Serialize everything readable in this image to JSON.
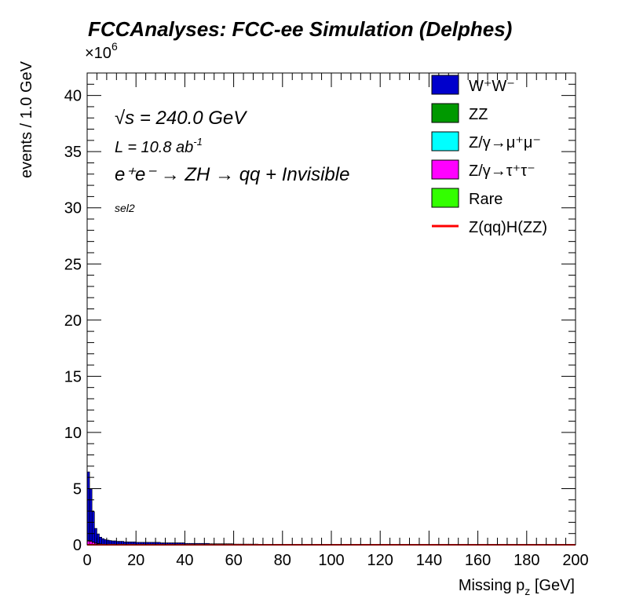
{
  "chart_data": {
    "type": "histogram-stacked",
    "title": "FCCAnalyses: FCC-ee Simulation (Delphes)",
    "xlabel": "Missing p",
    "xlabel_sub": "z",
    "xlabel_unit": " [GeV]",
    "ylabel": "events / 1.0 GeV",
    "y_multiplier": "×10",
    "y_multiplier_exp": "6",
    "xlim": [
      0,
      200
    ],
    "ylim": [
      0,
      42
    ],
    "x_ticks": [
      0,
      20,
      40,
      60,
      80,
      100,
      120,
      140,
      160,
      180,
      200
    ],
    "y_ticks": [
      0,
      5,
      10,
      15,
      20,
      25,
      30,
      35,
      40
    ],
    "annotations": {
      "sqrt_s_sym": "√s",
      "sqrt_s_val": " = 240.0 GeV",
      "lumi": "L = 10.8 ab",
      "lumi_exp": "-1",
      "process": "e⁺e⁻ → ZH → qq + Invisible",
      "selection": "sel2"
    },
    "legend_position": "top-right",
    "legend": [
      {
        "label": "W⁺W⁻",
        "color": "#0000cc",
        "type": "fill"
      },
      {
        "label": "ZZ",
        "color": "#009900",
        "type": "fill"
      },
      {
        "label": "Z/γ→μ⁺μ⁻",
        "color": "#00ffff",
        "type": "fill"
      },
      {
        "label": "Z/γ→τ⁺τ⁻",
        "color": "#ff00ff",
        "type": "fill"
      },
      {
        "label": "Rare",
        "color": "#33ff00",
        "type": "fill"
      },
      {
        "label": "Z(qq)H(ZZ)",
        "color": "#ff0000",
        "type": "line"
      }
    ],
    "bin_width": 1.0,
    "series": [
      {
        "name": "W⁺W⁻",
        "color": "#0000cc",
        "x": [
          0,
          1,
          2,
          3,
          4,
          5,
          6,
          7,
          8,
          9,
          10,
          12,
          15,
          20,
          30,
          40,
          50,
          60,
          70,
          80,
          90
        ],
        "values": [
          6.1,
          4.6,
          2.7,
          1.3,
          0.85,
          0.6,
          0.5,
          0.42,
          0.38,
          0.35,
          0.32,
          0.28,
          0.24,
          0.2,
          0.16,
          0.12,
          0.09,
          0.06,
          0.03,
          0.01,
          0.0
        ]
      },
      {
        "name": "ZZ",
        "color": "#009900",
        "x": [
          0,
          1,
          2,
          3,
          4,
          5,
          6,
          7,
          8,
          9,
          10,
          12,
          15,
          20,
          30,
          40,
          50,
          60,
          70,
          80,
          90
        ],
        "values": [
          0.05,
          0.04,
          0.03,
          0.02,
          0.02,
          0.02,
          0.01,
          0.01,
          0.01,
          0.01,
          0.01,
          0.01,
          0.01,
          0.01,
          0.005,
          0.005,
          0.003,
          0.002,
          0.001,
          0.0,
          0.0
        ]
      },
      {
        "name": "Z/γ→μ⁺μ⁻",
        "color": "#00ffff",
        "x": [
          0,
          1,
          2,
          3,
          4,
          5,
          6,
          7,
          8,
          9,
          10,
          12,
          15,
          20,
          30,
          40,
          50,
          60,
          70,
          80,
          90
        ],
        "values": [
          0.02,
          0.02,
          0.01,
          0.01,
          0.01,
          0.01,
          0.0,
          0.0,
          0.0,
          0.0,
          0.0,
          0.0,
          0.0,
          0.0,
          0.0,
          0.0,
          0.0,
          0.0,
          0.0,
          0.0,
          0.0
        ]
      },
      {
        "name": "Z/γ→τ⁺τ⁻",
        "color": "#ff00ff",
        "x": [
          0,
          1,
          2,
          3,
          4,
          5,
          6,
          7,
          8,
          9,
          10,
          12,
          15,
          20,
          30,
          40,
          50,
          60,
          70,
          80,
          90
        ],
        "values": [
          0.3,
          0.28,
          0.2,
          0.12,
          0.08,
          0.05,
          0.04,
          0.03,
          0.03,
          0.02,
          0.02,
          0.02,
          0.01,
          0.01,
          0.01,
          0.0,
          0.0,
          0.0,
          0.0,
          0.0,
          0.0
        ]
      },
      {
        "name": "Rare",
        "color": "#33ff00",
        "x": [
          0,
          1,
          2,
          3,
          4,
          5,
          6,
          7,
          8,
          9,
          10,
          12,
          15,
          20,
          30,
          40,
          50,
          60,
          70,
          80,
          90
        ],
        "values": [
          0.02,
          0.02,
          0.01,
          0.01,
          0.01,
          0.0,
          0.0,
          0.0,
          0.0,
          0.0,
          0.0,
          0.0,
          0.0,
          0.0,
          0.0,
          0.0,
          0.0,
          0.0,
          0.0,
          0.0,
          0.0
        ]
      }
    ],
    "signal": {
      "name": "Z(qq)H(ZZ)",
      "color": "#ff0000",
      "x": [
        0,
        1,
        2,
        3,
        4,
        5,
        6,
        7,
        8,
        9,
        10,
        12,
        15,
        20,
        30,
        40,
        50,
        60,
        70,
        80,
        90
      ],
      "values": [
        0.002,
        0.002,
        0.002,
        0.002,
        0.002,
        0.002,
        0.002,
        0.002,
        0.002,
        0.002,
        0.002,
        0.002,
        0.002,
        0.002,
        0.002,
        0.002,
        0.002,
        0.002,
        0.002,
        0.002,
        0.001
      ]
    }
  }
}
